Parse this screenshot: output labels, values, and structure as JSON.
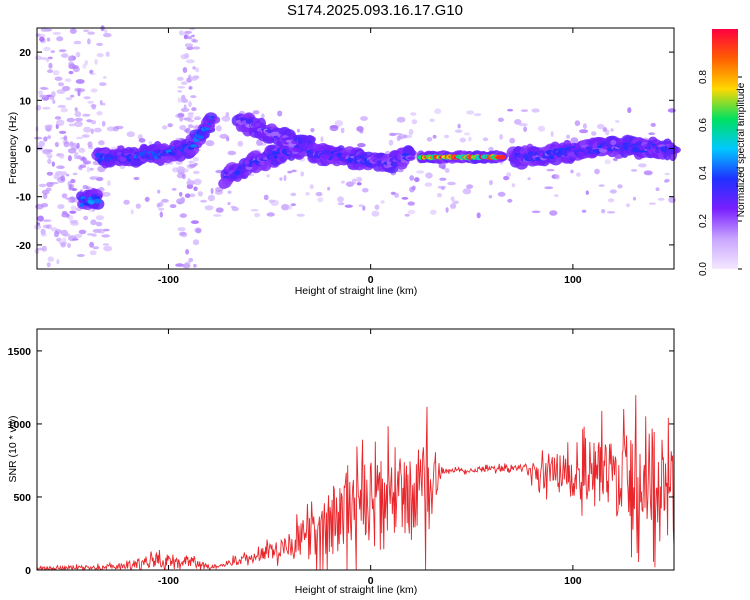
{
  "title": "S174.2025.093.16.17.G10",
  "chart_data": [
    {
      "type": "heatmap",
      "xlabel": "Height of straight line (km)",
      "ylabel": "Frequency (Hz)",
      "xlim": [
        -165,
        150
      ],
      "ylim": [
        -25,
        25
      ],
      "xticks": [
        -100,
        0,
        100
      ],
      "xtick_labels": [
        "-100",
        "0",
        "100"
      ],
      "yticks": [
        -20,
        -10,
        0,
        10,
        20
      ],
      "ytick_labels": [
        "-20",
        "-10",
        "0",
        "10",
        "20"
      ],
      "colorbar": {
        "label": "Normalized spectral amplitude",
        "range": [
          0,
          1
        ],
        "ticks": [
          0.0,
          0.2,
          0.4,
          0.6,
          0.8
        ],
        "tick_labels": [
          "0.0",
          "0.2",
          "0.4",
          "0.6",
          "0.8"
        ],
        "colors": [
          "#f4e8ff",
          "#c9a6ff",
          "#7a20ff",
          "#2030ff",
          "#00c8ff",
          "#00e060",
          "#ffd800",
          "#ff6000",
          "#ff0040"
        ]
      },
      "ridges": [
        {
          "x": [
            -143,
            -135
          ],
          "y": [
            -11,
            -10.5
          ],
          "amp": 0.5
        },
        {
          "x": [
            -135,
            -110,
            -90,
            -78
          ],
          "y": [
            -2,
            -1.5,
            0,
            6
          ],
          "amp": 0.4
        },
        {
          "x": [
            -72,
            -58,
            -45,
            -30
          ],
          "y": [
            -6,
            -3,
            -1,
            1
          ],
          "amp": 0.35
        },
        {
          "x": [
            -65,
            -55,
            -45,
            -35
          ],
          "y": [
            6,
            4,
            2,
            1
          ],
          "amp": 0.3
        },
        {
          "x": [
            -30,
            -10,
            10,
            20
          ],
          "y": [
            -1,
            -2,
            -3,
            -1.5
          ],
          "amp": 0.35
        },
        {
          "x": [
            25,
            45,
            65
          ],
          "y": [
            -1.8,
            -1.8,
            -1.8
          ],
          "amp": 0.95
        },
        {
          "x": [
            70,
            95,
            120,
            150
          ],
          "y": [
            -2,
            -1,
            0.5,
            0
          ],
          "amp": 0.35
        }
      ]
    },
    {
      "type": "line",
      "xlabel": "Height of straight line (km)",
      "ylabel": "SNR (10 * v/v)",
      "xlim": [
        -165,
        150
      ],
      "ylim": [
        0,
        1650
      ],
      "xticks": [
        -100,
        0,
        100
      ],
      "xtick_labels": [
        "-100",
        "0",
        "100"
      ],
      "yticks": [
        0,
        500,
        1000,
        1500
      ],
      "ytick_labels": [
        "0",
        "500",
        "1000",
        "1500"
      ],
      "series": [
        {
          "color": "#e8262b",
          "envelope": [
            {
              "x": -165,
              "base": 10,
              "amp": 20
            },
            {
              "x": -125,
              "base": 20,
              "amp": 30
            },
            {
              "x": -110,
              "base": 60,
              "amp": 80
            },
            {
              "x": -90,
              "base": 70,
              "amp": 80
            },
            {
              "x": -80,
              "base": 20,
              "amp": 20
            },
            {
              "x": -60,
              "base": 80,
              "amp": 60
            },
            {
              "x": -40,
              "base": 180,
              "amp": 150
            },
            {
              "x": -25,
              "base": 250,
              "amp": 350
            },
            {
              "x": -10,
              "base": 450,
              "amp": 500
            },
            {
              "x": 10,
              "base": 500,
              "amp": 500
            },
            {
              "x": 28,
              "base": 520,
              "amp": 600
            },
            {
              "x": 35,
              "base": 680,
              "amp": 30
            },
            {
              "x": 75,
              "base": 700,
              "amp": 40
            },
            {
              "x": 85,
              "base": 650,
              "amp": 180
            },
            {
              "x": 100,
              "base": 700,
              "amp": 300
            },
            {
              "x": 120,
              "base": 650,
              "amp": 500
            },
            {
              "x": 150,
              "base": 600,
              "amp": 700
            }
          ]
        }
      ]
    }
  ]
}
